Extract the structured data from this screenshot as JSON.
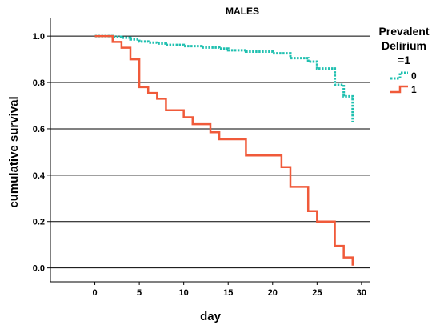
{
  "chart_data": {
    "type": "line",
    "subtype": "step-survival",
    "title": "MALES",
    "xlabel": "day",
    "ylabel": "cumulative survival",
    "xlim": [
      -5,
      31
    ],
    "ylim": [
      -0.06,
      1.08
    ],
    "xticks": [
      0,
      5,
      10,
      15,
      20,
      25,
      30
    ],
    "yticks": [
      0.0,
      0.2,
      0.4,
      0.6,
      0.8,
      1.0
    ],
    "ytick_labels": [
      "0.0",
      "0.2",
      "0.4",
      "0.6",
      "0.8",
      "1.0"
    ],
    "grid": "horizontal",
    "legend": {
      "position": "right",
      "title_lines": [
        "Prevalent",
        "Delirium",
        "=1"
      ]
    },
    "series": [
      {
        "name": "0",
        "color": "#20c0b0",
        "style": "dotted",
        "x": [
          0,
          2,
          3,
          4,
          5,
          6,
          7,
          8,
          10,
          12,
          14,
          15,
          17,
          20,
          22,
          24,
          25,
          27,
          28,
          29
        ],
        "y": [
          1.0,
          0.997,
          0.993,
          0.986,
          0.977,
          0.972,
          0.968,
          0.962,
          0.957,
          0.951,
          0.946,
          0.939,
          0.933,
          0.926,
          0.905,
          0.89,
          0.86,
          0.79,
          0.74,
          0.63
        ]
      },
      {
        "name": "1",
        "color": "#f05a3a",
        "style": "solid",
        "x": [
          0,
          2,
          3,
          4,
          5,
          6,
          7,
          8,
          10,
          11,
          13,
          14,
          17,
          21,
          22,
          24,
          25,
          27,
          28,
          29
        ],
        "y": [
          1.0,
          0.975,
          0.95,
          0.9,
          0.78,
          0.755,
          0.73,
          0.68,
          0.65,
          0.62,
          0.585,
          0.555,
          0.485,
          0.435,
          0.35,
          0.245,
          0.2,
          0.095,
          0.045,
          0.01
        ]
      }
    ]
  }
}
